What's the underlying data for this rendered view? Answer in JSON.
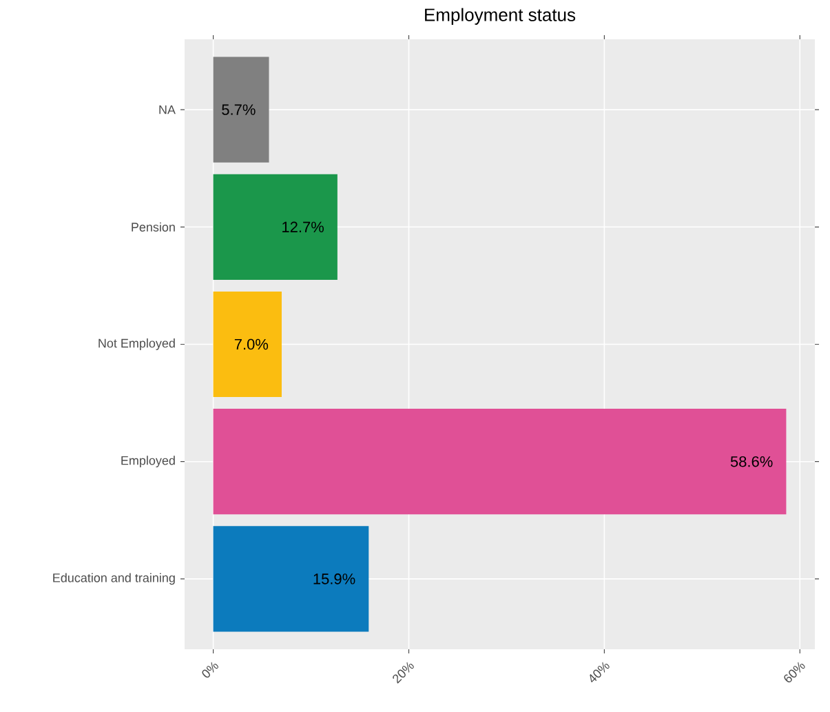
{
  "chart_data": {
    "type": "bar",
    "orientation": "horizontal",
    "title": "Employment status",
    "categories": [
      "NA",
      "Pension",
      "Not Employed",
      "Employed",
      "Education and training"
    ],
    "values": [
      5.7,
      12.7,
      7.0,
      58.6,
      15.9
    ],
    "value_labels": [
      "5.7%",
      "12.7%",
      "7.0%",
      "58.6%",
      "15.9%"
    ],
    "colors": [
      "#808080",
      "#1b974b",
      "#fbbd10",
      "#e05096",
      "#0c7bbd"
    ],
    "xlim": [
      -2.93,
      61.53
    ],
    "xticks": [
      {
        "value": 0,
        "label": "0%"
      },
      {
        "value": 20,
        "label": "20%"
      },
      {
        "value": 40,
        "label": "40%"
      },
      {
        "value": 60,
        "label": "60%"
      }
    ],
    "grid": true
  }
}
